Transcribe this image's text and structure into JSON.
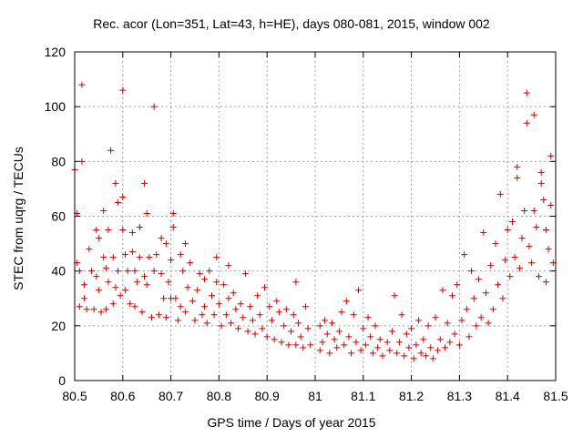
{
  "colors": {
    "points": "#cc0000",
    "axes": "#000000",
    "grid": "#a0a0a0"
  },
  "chart_data": {
    "type": "scatter",
    "title": "Rec. acor (Lon=351, Lat=43, h=HE), days 080-081, 2015, window 002",
    "xlabel": "GPS time / Days of year 2015",
    "ylabel": "STEC from uqrg / TECUs",
    "xlim": [
      80.5,
      81.5
    ],
    "ylim": [
      0,
      120
    ],
    "xticks": [
      80.5,
      80.6,
      80.7,
      80.8,
      80.9,
      81,
      81.1,
      81.2,
      81.3,
      81.4,
      81.5
    ],
    "xtick_labels": [
      "80.5",
      "80.6",
      "80.7",
      "80.8",
      "80.9",
      "81",
      "81.1",
      "81.2",
      "81.3",
      "81.4",
      "81.5"
    ],
    "yticks": [
      0,
      20,
      40,
      60,
      80,
      100,
      120
    ],
    "ytick_labels": [
      "0",
      "20",
      "40",
      "60",
      "80",
      "100",
      "120"
    ],
    "grid": true,
    "marker": "+",
    "series": [
      {
        "name": "STEC",
        "points": [
          [
            80.5,
            77
          ],
          [
            80.505,
            43
          ],
          [
            80.505,
            61
          ],
          [
            80.51,
            40
          ],
          [
            80.51,
            27
          ],
          [
            80.515,
            108
          ],
          [
            80.515,
            80
          ],
          [
            80.52,
            35
          ],
          [
            80.52,
            30
          ],
          [
            80.525,
            26
          ],
          [
            80.53,
            48
          ],
          [
            80.535,
            40
          ],
          [
            80.54,
            26
          ],
          [
            80.545,
            55
          ],
          [
            80.545,
            38
          ],
          [
            80.55,
            52
          ],
          [
            80.55,
            33
          ],
          [
            80.555,
            25
          ],
          [
            80.56,
            62
          ],
          [
            80.56,
            45
          ],
          [
            80.565,
            41
          ],
          [
            80.565,
            26
          ],
          [
            80.57,
            55
          ],
          [
            80.57,
            36
          ],
          [
            80.575,
            84
          ],
          [
            80.58,
            45
          ],
          [
            80.58,
            28
          ],
          [
            80.585,
            72
          ],
          [
            80.585,
            34
          ],
          [
            80.59,
            65
          ],
          [
            80.59,
            40
          ],
          [
            80.595,
            31
          ],
          [
            80.6,
            106
          ],
          [
            80.6,
            67
          ],
          [
            80.6,
            55
          ],
          [
            80.605,
            46
          ],
          [
            80.605,
            33
          ],
          [
            80.61,
            40
          ],
          [
            80.615,
            28
          ],
          [
            80.62,
            54
          ],
          [
            80.62,
            47
          ],
          [
            80.625,
            40
          ],
          [
            80.625,
            27
          ],
          [
            80.63,
            36
          ],
          [
            80.635,
            56
          ],
          [
            80.635,
            45
          ],
          [
            80.64,
            25
          ],
          [
            80.645,
            72
          ],
          [
            80.645,
            38
          ],
          [
            80.65,
            61
          ],
          [
            80.65,
            35
          ],
          [
            80.655,
            45
          ],
          [
            80.66,
            23
          ],
          [
            80.665,
            100
          ],
          [
            80.665,
            40
          ],
          [
            80.67,
            46
          ],
          [
            80.675,
            24
          ],
          [
            80.68,
            52
          ],
          [
            80.68,
            39
          ],
          [
            80.685,
            30
          ],
          [
            80.69,
            50
          ],
          [
            80.69,
            23
          ],
          [
            80.695,
            36
          ],
          [
            80.7,
            44
          ],
          [
            80.7,
            30
          ],
          [
            80.705,
            56
          ],
          [
            80.705,
            61
          ],
          [
            80.71,
            30
          ],
          [
            80.715,
            22
          ],
          [
            80.72,
            46
          ],
          [
            80.72,
            27
          ],
          [
            80.725,
            40
          ],
          [
            80.73,
            50
          ],
          [
            80.73,
            25
          ],
          [
            80.735,
            34
          ],
          [
            80.74,
            43
          ],
          [
            80.745,
            29
          ],
          [
            80.75,
            22
          ],
          [
            80.755,
            33
          ],
          [
            80.76,
            39
          ],
          [
            80.765,
            24
          ],
          [
            80.77,
            37
          ],
          [
            80.77,
            27
          ],
          [
            80.775,
            21
          ],
          [
            80.78,
            40
          ],
          [
            80.785,
            31
          ],
          [
            80.79,
            24
          ],
          [
            80.795,
            45
          ],
          [
            80.795,
            36
          ],
          [
            80.8,
            28
          ],
          [
            80.805,
            20
          ],
          [
            80.81,
            35
          ],
          [
            80.815,
            24
          ],
          [
            80.82,
            42
          ],
          [
            80.82,
            30
          ],
          [
            80.825,
            21
          ],
          [
            80.83,
            32
          ],
          [
            80.835,
            26
          ],
          [
            80.84,
            19
          ],
          [
            80.845,
            28
          ],
          [
            80.85,
            23
          ],
          [
            80.855,
            39
          ],
          [
            80.86,
            18
          ],
          [
            80.865,
            27
          ],
          [
            80.87,
            22
          ],
          [
            80.875,
            17
          ],
          [
            80.88,
            31
          ],
          [
            80.885,
            24
          ],
          [
            80.89,
            19
          ],
          [
            80.895,
            34
          ],
          [
            80.9,
            16
          ],
          [
            80.905,
            27
          ],
          [
            80.91,
            22
          ],
          [
            80.915,
            15
          ],
          [
            80.92,
            29
          ],
          [
            80.925,
            25
          ],
          [
            80.93,
            14
          ],
          [
            80.935,
            20
          ],
          [
            80.94,
            26
          ],
          [
            80.945,
            13
          ],
          [
            80.95,
            18
          ],
          [
            80.955,
            24
          ],
          [
            80.96,
            36
          ],
          [
            80.96,
            13
          ],
          [
            80.965,
            21
          ],
          [
            80.97,
            16
          ],
          [
            80.975,
            12
          ],
          [
            80.98,
            27
          ],
          [
            80.985,
            19
          ],
          [
            80.99,
            13
          ],
          [
            81.01,
            20
          ],
          [
            81.01,
            11
          ],
          [
            81.015,
            14
          ],
          [
            81.02,
            22
          ],
          [
            81.025,
            17
          ],
          [
            81.03,
            10
          ],
          [
            81.035,
            21
          ],
          [
            81.04,
            15
          ],
          [
            81.045,
            12
          ],
          [
            81.05,
            18
          ],
          [
            81.055,
            25
          ],
          [
            81.06,
            13
          ],
          [
            81.065,
            29
          ],
          [
            81.07,
            16
          ],
          [
            81.075,
            10
          ],
          [
            81.08,
            24
          ],
          [
            81.085,
            14
          ],
          [
            81.09,
            33
          ],
          [
            81.095,
            11
          ],
          [
            81.1,
            19
          ],
          [
            81.105,
            13
          ],
          [
            81.11,
            23
          ],
          [
            81.115,
            16
          ],
          [
            81.12,
            10
          ],
          [
            81.125,
            20
          ],
          [
            81.13,
            12
          ],
          [
            81.135,
            15
          ],
          [
            81.14,
            9
          ],
          [
            81.15,
            14
          ],
          [
            81.155,
            11
          ],
          [
            81.16,
            18
          ],
          [
            81.165,
            31
          ],
          [
            81.17,
            10
          ],
          [
            81.175,
            14
          ],
          [
            81.18,
            24
          ],
          [
            81.185,
            9
          ],
          [
            81.19,
            17
          ],
          [
            81.195,
            12
          ],
          [
            81.2,
            19
          ],
          [
            81.205,
            8
          ],
          [
            81.21,
            13
          ],
          [
            81.215,
            22
          ],
          [
            81.22,
            10
          ],
          [
            81.225,
            15
          ],
          [
            81.23,
            9
          ],
          [
            81.235,
            20
          ],
          [
            81.24,
            12
          ],
          [
            81.245,
            8
          ],
          [
            81.25,
            23
          ],
          [
            81.255,
            11
          ],
          [
            81.26,
            15
          ],
          [
            81.265,
            33
          ],
          [
            81.27,
            12
          ],
          [
            81.275,
            21
          ],
          [
            81.28,
            14
          ],
          [
            81.285,
            31
          ],
          [
            81.29,
            17
          ],
          [
            81.295,
            35
          ],
          [
            81.3,
            13
          ],
          [
            81.305,
            22
          ],
          [
            81.31,
            46
          ],
          [
            81.315,
            26
          ],
          [
            81.32,
            16
          ],
          [
            81.325,
            40
          ],
          [
            81.33,
            30
          ],
          [
            81.335,
            20
          ],
          [
            81.34,
            37
          ],
          [
            81.345,
            23
          ],
          [
            81.35,
            54
          ],
          [
            81.355,
            32
          ],
          [
            81.36,
            21
          ],
          [
            81.365,
            42
          ],
          [
            81.37,
            26
          ],
          [
            81.375,
            50
          ],
          [
            81.38,
            35
          ],
          [
            81.385,
            68
          ],
          [
            81.39,
            30
          ],
          [
            81.395,
            44
          ],
          [
            81.4,
            55
          ],
          [
            81.405,
            38
          ],
          [
            81.41,
            58
          ],
          [
            81.415,
            45
          ],
          [
            81.42,
            74
          ],
          [
            81.42,
            78
          ],
          [
            81.425,
            41
          ],
          [
            81.43,
            52
          ],
          [
            81.435,
            62
          ],
          [
            81.44,
            105
          ],
          [
            81.44,
            94
          ],
          [
            81.445,
            49
          ],
          [
            81.45,
            43
          ],
          [
            81.455,
            97
          ],
          [
            81.455,
            62
          ],
          [
            81.46,
            56
          ],
          [
            81.465,
            38
          ],
          [
            81.47,
            76
          ],
          [
            81.47,
            72
          ],
          [
            81.475,
            66
          ],
          [
            81.48,
            55
          ],
          [
            81.48,
            36
          ],
          [
            81.485,
            48
          ],
          [
            81.49,
            82
          ],
          [
            81.49,
            64
          ],
          [
            81.495,
            43
          ]
        ]
      }
    ]
  }
}
